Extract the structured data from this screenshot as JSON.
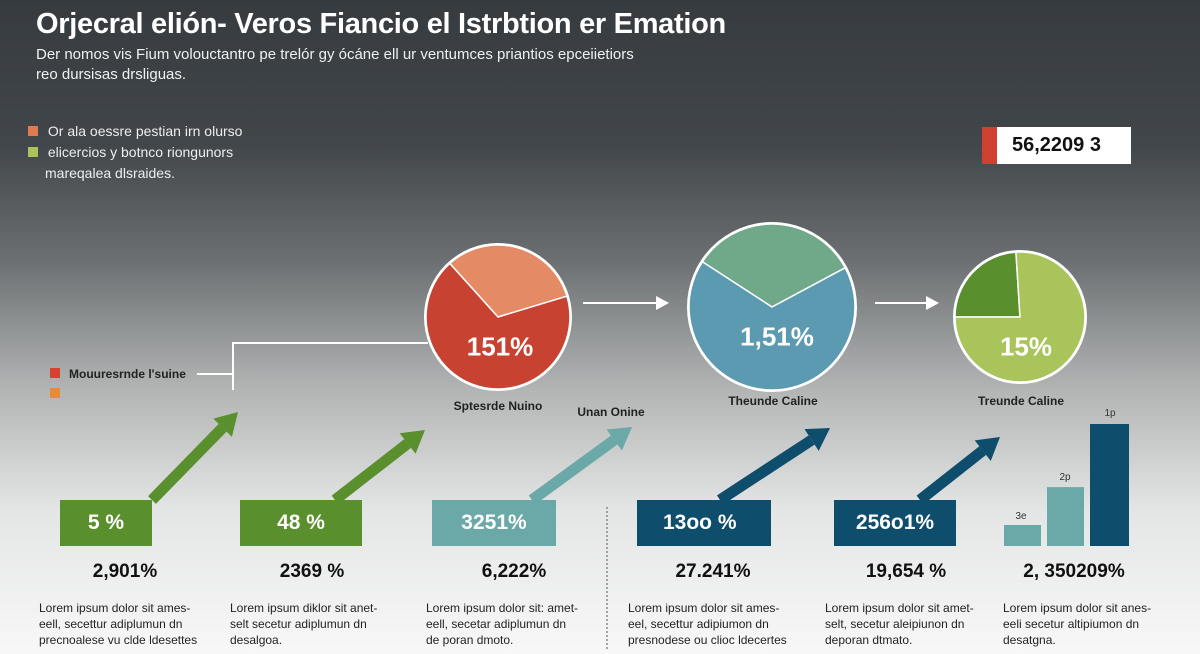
{
  "header": {
    "title": "Orjecral elión- Veros Fiancio el Istrbtion er Emation",
    "subtitle_line1": "Der nomos vis Fium volouctantro pe trelór gy ócáne ell ur ventumces priantios epceiietiors",
    "subtitle_line2": "reo dursisas drsliguas."
  },
  "legend": {
    "items": [
      {
        "label": "Or ala oessre pestian irn olurso",
        "color": "#e07a50"
      },
      {
        "label": "elicercios y botnco riongunors",
        "color": "#a9c45a"
      }
    ],
    "continuation": "mareqalea dlsraides."
  },
  "kpi": {
    "value": "56,2209 3",
    "accent": "#cf4030"
  },
  "connector_legend": {
    "label": "Mouuresrnde l'suine",
    "colors": [
      "#d84030",
      "#e88a3a"
    ]
  },
  "chart_data": [
    {
      "type": "pie",
      "value_label": "151%",
      "label": "Sptesrde Nuino",
      "slices": [
        {
          "value": 32,
          "color": "#e48a64"
        },
        {
          "value": 68,
          "color": "#c84232"
        }
      ]
    },
    {
      "type": "pie",
      "value_label": "1,51%",
      "label": "Theunde Caline",
      "slices": [
        {
          "value": 33,
          "color": "#6fa98a"
        },
        {
          "value": 67,
          "color": "#5b9ab0"
        }
      ]
    },
    {
      "type": "pie",
      "value_label": "15%",
      "label": "Treunde Caline",
      "slices": [
        {
          "value": 24,
          "color": "#5a8f2e"
        },
        {
          "value": 76,
          "color": "#a9c45a"
        }
      ]
    },
    {
      "type": "bar",
      "categories": [
        "3e",
        "2p",
        "1p"
      ],
      "values": [
        1,
        2.8,
        5.8
      ],
      "colors": [
        "#6aa9a8",
        "#6aa9a8",
        "#0e4d6b"
      ]
    }
  ],
  "extra_label": "Unan Onine",
  "metrics": [
    {
      "box": "5 %",
      "value": "2,901%",
      "color": "#5a8f2e",
      "desc": [
        "Lorem ipsum dolor sit ames-",
        "eell, secettur adiplumun dn",
        "precnoalese vu clde ldesettes"
      ]
    },
    {
      "box": "48 %",
      "value": "2369 %",
      "color": "#5a8f2e",
      "desc": [
        "Lorem ipsum diklor sit anet-",
        "selt secetur adiplumun dn",
        "desalgoa."
      ]
    },
    {
      "box": "3251%",
      "value": "6,222%",
      "color": "#6aa9a8",
      "desc": [
        "Lorem ipsum dolor sit: amet-",
        "eell, secetar adiplumun dn",
        "de poran dmoto."
      ]
    },
    {
      "box": "13oo %",
      "value": "27.241%",
      "color": "#0e4d6b",
      "desc": [
        "Lorem ipsum dolor sit ames-",
        "eel, secettur adipiumon dn",
        "presnodese ou clioc ldecertes"
      ]
    },
    {
      "box": "256o1%",
      "value": "19,654 %",
      "color": "#0e4d6b",
      "desc": [
        "Lorem ipsum dolor sit amet-",
        "selt, secetur aleipiunon dn",
        "deporan dtmato."
      ]
    },
    {
      "box": "",
      "value": "2, 350209%",
      "color": "#0e4d6b",
      "desc": [
        "Lorem ipsum dolor sit anes-",
        "eeli secetur altipiumon dn",
        "desatgna."
      ]
    }
  ]
}
